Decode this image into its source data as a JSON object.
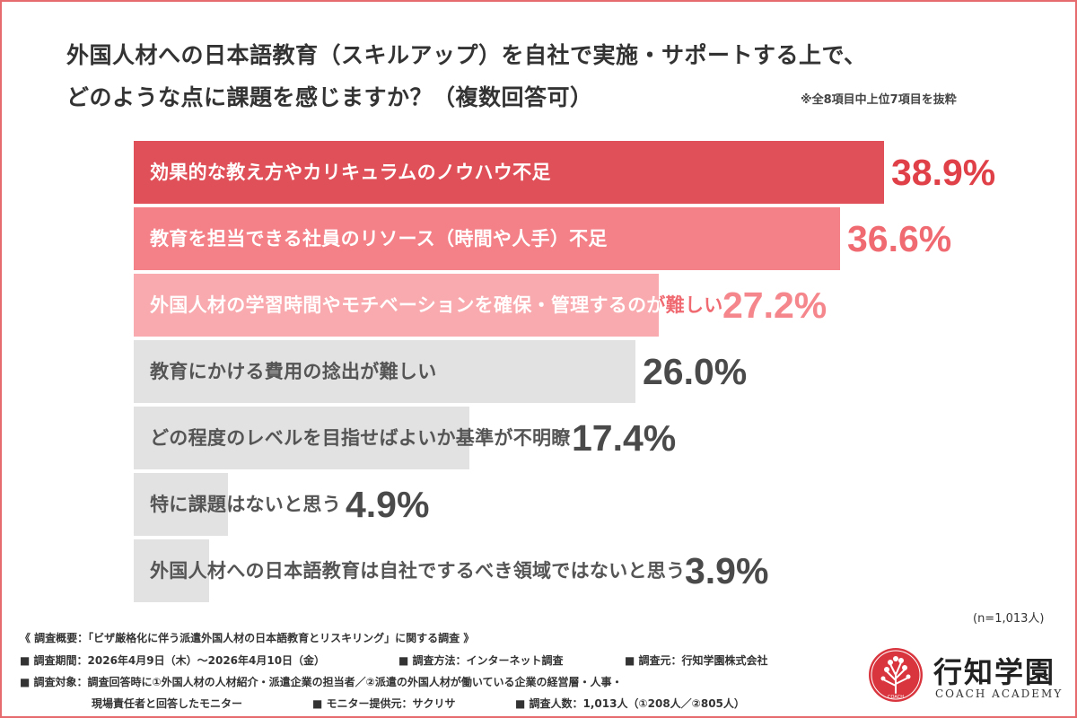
{
  "title_line1": "外国人材への日本語教育（スキルアップ）を自社で実施・サポートする上で、",
  "title_line2": "どのような点に課題を感じますか？（複数回答可）",
  "note_top": "※全8項目中上位7項目を抜粋",
  "sample_note": "(n=1,013人)",
  "chart_data": {
    "type": "bar",
    "orientation": "horizontal",
    "unit": "%",
    "xlim": [
      0,
      50
    ],
    "categories": [
      "効果的な教え方やカリキュラムのノウハウ不足",
      "教育を担当できる社員のリソース（時間や人手）不足",
      "外国人材の学習時間やモチベーションを確保・管理するのが難しい",
      "教育にかける費用の捻出が難しい",
      "どの程度のレベルを目指せばよいか基準が不明瞭",
      "特に課題はないと思う",
      "外国人材への日本語教育は自社でするべき領域ではないと思う"
    ],
    "values": [
      38.9,
      36.6,
      27.2,
      26.0,
      17.4,
      4.9,
      3.9
    ],
    "value_labels": [
      "38.9%",
      "36.6%",
      "27.2%",
      "26.0%",
      "17.4%",
      "4.9%",
      "3.9%"
    ],
    "bar_colors": [
      "#e05058",
      "#f48188",
      "#f9aaae",
      "#e2e2e2",
      "#e2e2e2",
      "#e2e2e2",
      "#e2e2e2"
    ],
    "label_colors": [
      "#ffffff",
      "#ffffff",
      "#ffffff",
      "#555555",
      "#555555",
      "#555555",
      "#555555"
    ],
    "value_colors": [
      "#e04048",
      "#f06a72",
      "#f4868c",
      "#4a4a4a",
      "#4a4a4a",
      "#4a4a4a",
      "#4a4a4a"
    ],
    "overflow_label_color": "#f06a72",
    "grid": false,
    "legend": "none"
  },
  "footer": {
    "line1": "《 調査概要：「ビザ厳格化に伴う派遣外国人材の日本語教育とリスキリング」に関する調査 》",
    "period": "■ 調査期間：2026年4月9日（木）〜2026年4月10日（金）",
    "method": "■ 調査方法：インターネット調査",
    "source": "■ 調査元：行知学園株式会社",
    "target": "■ 調査対象：調査回答時に①外国人材の人材紹介・派遣企業の担当者／②派遣の外国人材が働いている企業の経営層・人事・",
    "target_cont": "現場責任者と回答したモニター",
    "provider": "■ モニター提供元：サクリサ",
    "count": "■ 調査人数：1,013人（①208人／②805人）"
  },
  "logo": {
    "name": "行知学園",
    "sub": "COACH ACADEMY",
    "mark_text": "COACH"
  },
  "colors": {
    "frame": "#e56b6f",
    "title": "#333333",
    "tree": "#d9353e"
  }
}
